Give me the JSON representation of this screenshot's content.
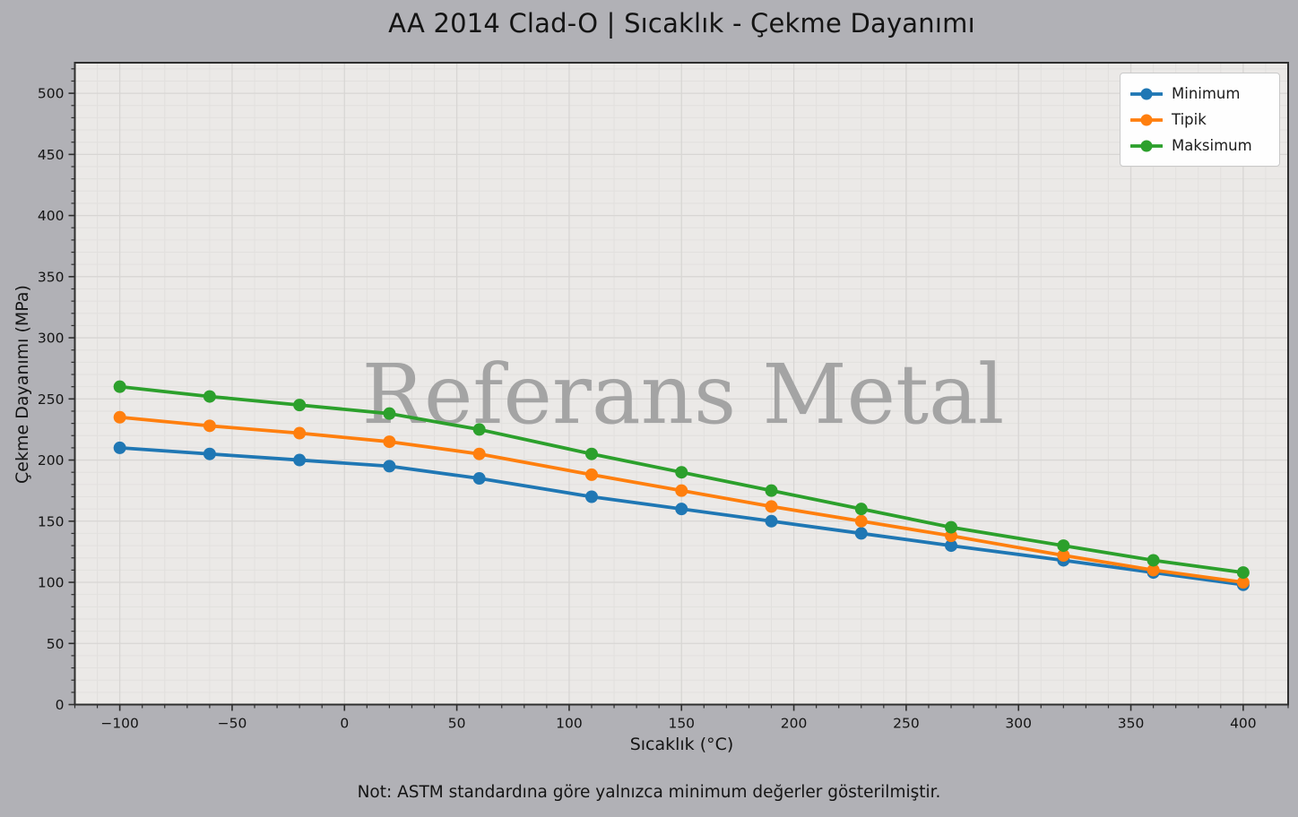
{
  "title": "AA 2014 Clad-O | Sıcaklık - Çekme Dayanımı",
  "note": "Not: ASTM standardına göre yalnızca minimum değerler gösterilmiştir.",
  "watermark": "Referans Metal",
  "colors": {
    "figure_background": "#b1b1b6",
    "plot_background": "#ebe9e7",
    "grid_major": "#d8d6d4",
    "grid_minor": "#e2e0de",
    "frame": "#2e2e2e",
    "text": "#141414",
    "watermark": "#a4a4a4",
    "legend_background": "#fefefe",
    "legend_border": "#c9c9c9"
  },
  "chart_data": {
    "type": "line",
    "title": "AA 2014 Clad-O | Sıcaklık - Çekme Dayanımı",
    "xlabel": "Sıcaklık (°C)",
    "ylabel": "Çekme Dayanımı (MPa)",
    "x": [
      -100,
      -60,
      -20,
      20,
      60,
      110,
      150,
      190,
      230,
      270,
      320,
      360,
      400
    ],
    "series": [
      {
        "name": "Minimum",
        "color": "#1f77b4",
        "values": [
          210,
          205,
          200,
          195,
          185,
          170,
          160,
          150,
          140,
          130,
          118,
          108,
          98
        ]
      },
      {
        "name": "Tipik",
        "color": "#ff7f0e",
        "values": [
          235,
          228,
          222,
          215,
          205,
          188,
          175,
          162,
          150,
          138,
          122,
          110,
          100
        ]
      },
      {
        "name": "Maksimum",
        "color": "#2ca02c",
        "values": [
          260,
          252,
          245,
          238,
          225,
          205,
          190,
          175,
          160,
          145,
          130,
          118,
          108
        ]
      }
    ],
    "xlim": [
      -120,
      420
    ],
    "ylim": [
      0,
      525
    ],
    "xticks": [
      -100,
      -50,
      0,
      50,
      100,
      150,
      200,
      250,
      300,
      350,
      400
    ],
    "yticks": [
      0,
      50,
      100,
      150,
      200,
      250,
      300,
      350,
      400,
      450,
      500
    ],
    "minor_step_x": 10,
    "minor_step_y": 10,
    "grid": true,
    "legend_position": "upper right",
    "marker": "circle",
    "line_width": 3.8,
    "marker_radius": 7
  }
}
